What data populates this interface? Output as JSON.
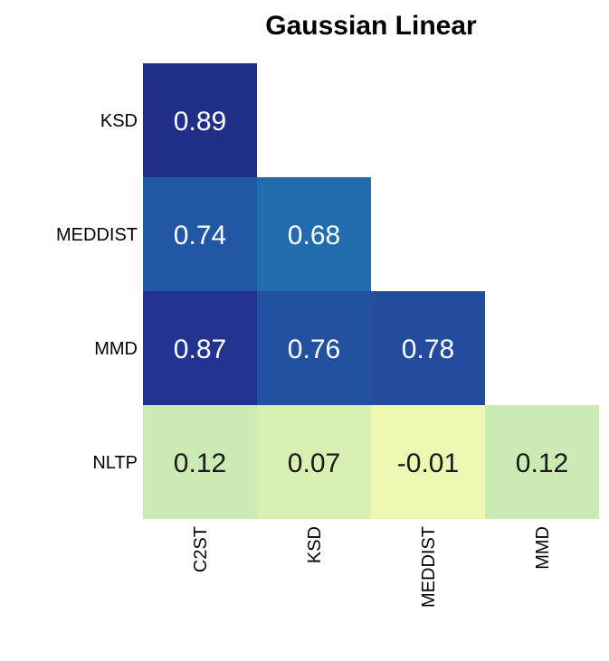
{
  "chart_data": {
    "type": "heatmap",
    "title": "Gaussian Linear",
    "x_categories": [
      "C2ST",
      "KSD",
      "MEDDIST",
      "MMD"
    ],
    "y_categories": [
      "KSD",
      "MEDDIST",
      "MMD",
      "NLTP"
    ],
    "cells": [
      {
        "row": "KSD",
        "col": "C2ST",
        "value": 0.89,
        "label": "0.89"
      },
      {
        "row": "MEDDIST",
        "col": "C2ST",
        "value": 0.74,
        "label": "0.74"
      },
      {
        "row": "MEDDIST",
        "col": "KSD",
        "value": 0.68,
        "label": "0.68"
      },
      {
        "row": "MMD",
        "col": "C2ST",
        "value": 0.87,
        "label": "0.87"
      },
      {
        "row": "MMD",
        "col": "KSD",
        "value": 0.76,
        "label": "0.76"
      },
      {
        "row": "MMD",
        "col": "MEDDIST",
        "value": 0.78,
        "label": "0.78"
      },
      {
        "row": "NLTP",
        "col": "C2ST",
        "value": 0.12,
        "label": "0.12"
      },
      {
        "row": "NLTP",
        "col": "KSD",
        "value": 0.07,
        "label": "0.07"
      },
      {
        "row": "NLTP",
        "col": "MEDDIST",
        "value": -0.01,
        "label": "-0.01"
      },
      {
        "row": "NLTP",
        "col": "MMD",
        "value": 0.12,
        "label": "0.12"
      }
    ],
    "colormap": "YlGnBu",
    "mask": "upper triangle"
  }
}
